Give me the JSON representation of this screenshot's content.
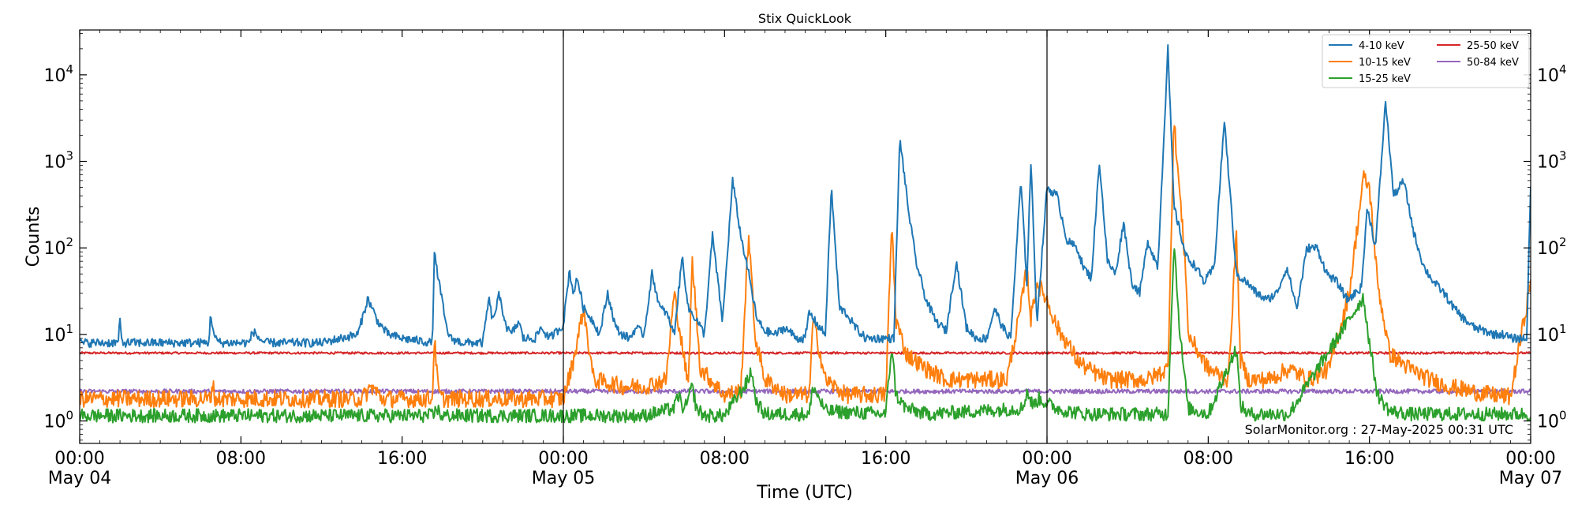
{
  "chart_data": {
    "type": "line",
    "title": "Stix QuickLook",
    "xlabel": "Time (UTC)",
    "ylabel": "Counts",
    "yscale": "log",
    "ylim": [
      0.55,
      33000
    ],
    "xlim": [
      0,
      72
    ],
    "x_unit": "hours since May 04 00:00 UTC",
    "grid": false,
    "legend": "top-right",
    "credit": "SolarMonitor.org : 27-May-2025 00:31 UTC",
    "day_lines": [
      24,
      48
    ],
    "x_ticks": [
      {
        "x": 0,
        "time": "00:00",
        "date": "May 04"
      },
      {
        "x": 8,
        "time": "08:00",
        "date": ""
      },
      {
        "x": 16,
        "time": "16:00",
        "date": ""
      },
      {
        "x": 24,
        "time": "00:00",
        "date": "May 05"
      },
      {
        "x": 32,
        "time": "08:00",
        "date": ""
      },
      {
        "x": 40,
        "time": "16:00",
        "date": ""
      },
      {
        "x": 48,
        "time": "00:00",
        "date": "May 06"
      },
      {
        "x": 56,
        "time": "08:00",
        "date": ""
      },
      {
        "x": 64,
        "time": "16:00",
        "date": ""
      },
      {
        "x": 72,
        "time": "00:00",
        "date": "May 07"
      }
    ],
    "y_ticks": [
      {
        "value": 1,
        "base": "10",
        "exp": "0"
      },
      {
        "value": 10,
        "base": "10",
        "exp": "1"
      },
      {
        "value": 100,
        "base": "10",
        "exp": "2"
      },
      {
        "value": 1000,
        "base": "10",
        "exp": "3"
      },
      {
        "value": 10000,
        "base": "10",
        "exp": "4"
      }
    ],
    "series": [
      {
        "name": "4-10 keV",
        "color": "#1f77b4",
        "noise": 0.05,
        "spiky": true,
        "x": [
          0,
          1.2,
          1.9,
          2.0,
          2.1,
          3,
          4,
          6.4,
          6.5,
          6.7,
          7,
          8.4,
          8.6,
          8.9,
          9.2,
          10,
          12,
          13.8,
          14.3,
          14.8,
          15.3,
          16,
          17.5,
          17.6,
          18.2,
          18.4,
          19,
          20,
          20.3,
          20.5,
          20.8,
          21.2,
          21.4,
          21.8,
          22,
          22.6,
          22.9,
          23.3,
          23.7,
          24,
          24.3,
          24.5,
          24.7,
          25,
          25.5,
          25.8,
          26.2,
          26.6,
          26.9,
          27.3,
          27.6,
          28,
          28.4,
          28.8,
          29.1,
          29.5,
          29.9,
          30.2,
          30.6,
          31,
          31.4,
          31.9,
          32.4,
          32.8,
          33.2,
          33.6,
          34,
          34.5,
          35,
          35.6,
          36,
          36.2,
          36.6,
          37,
          37.3,
          37.7,
          38,
          38.5,
          39,
          39.6,
          40,
          40.4,
          40.7,
          41.1,
          41.5,
          42,
          42.5,
          43,
          43.5,
          44,
          44.5,
          45,
          45.4,
          45.8,
          46.2,
          46.7,
          47,
          47.2,
          47.5,
          48,
          48.5,
          49,
          49.5,
          49.8,
          50.2,
          50.6,
          51,
          51.4,
          51.8,
          52.2,
          52.6,
          53,
          53.5,
          54,
          54.3,
          54.9,
          55.4,
          55.8,
          56.3,
          56.8,
          57.4,
          57.9,
          58.4,
          58.9,
          59.4,
          59.9,
          60.4,
          60.9,
          61.4,
          61.9,
          62.4,
          62.9,
          63.3,
          63.6,
          63.9,
          64.3,
          64.8,
          65.2,
          65.7,
          66.2,
          66.7,
          67.2,
          67.7,
          68.2,
          68.7,
          69.2,
          69.7,
          70.2,
          70.7,
          71,
          71.4,
          71.8,
          72
        ],
        "y": [
          8,
          8,
          8,
          14,
          8,
          8,
          8,
          8,
          17,
          9,
          8,
          8,
          11,
          9,
          8,
          8,
          8,
          10,
          26,
          14,
          10,
          9,
          8,
          85,
          12,
          9,
          8,
          8,
          26,
          14,
          28,
          12,
          10,
          14,
          9,
          9,
          12,
          9,
          11,
          13,
          55,
          30,
          45,
          20,
          14,
          10,
          30,
          12,
          10,
          9,
          12,
          10,
          50,
          20,
          18,
          10,
          80,
          20,
          15,
          10,
          140,
          14,
          600,
          140,
          50,
          15,
          11,
          10,
          12,
          9,
          9,
          18,
          13,
          10,
          500,
          20,
          18,
          12,
          9,
          9,
          9,
          9,
          1900,
          300,
          70,
          25,
          14,
          11,
          70,
          12,
          9,
          9,
          20,
          12,
          9,
          600,
          40,
          1000,
          14,
          500,
          400,
          120,
          100,
          60,
          45,
          1000,
          70,
          50,
          200,
          40,
          30,
          120,
          60,
          20000,
          300,
          80,
          60,
          40,
          60,
          3000,
          50,
          40,
          30,
          25,
          30,
          60,
          20,
          100,
          100,
          50,
          40,
          25,
          30,
          35,
          300,
          100,
          5000,
          400,
          600,
          150,
          60,
          40,
          30,
          20,
          15,
          12,
          11,
          10,
          10,
          9,
          9,
          9,
          500
        ]
      },
      {
        "name": "10-15 keV",
        "color": "#ff7f0e",
        "noise": 0.1,
        "spiky": true,
        "x": [
          0,
          6.5,
          6.6,
          6.7,
          8,
          11,
          14,
          14.5,
          15,
          17.5,
          17.6,
          17.8,
          18,
          20.5,
          22,
          24,
          24.5,
          25,
          25.5,
          27,
          28,
          29.1,
          29.5,
          30.2,
          30.4,
          30.8,
          32,
          32.8,
          33.2,
          33.5,
          34,
          34.5,
          35,
          36.2,
          36.4,
          37,
          38,
          40,
          40.3,
          40.5,
          41,
          42,
          43,
          44,
          45,
          46,
          46.7,
          47,
          47.2,
          47.5,
          48,
          48.5,
          49,
          49.5,
          50,
          51,
          52,
          53,
          54,
          54.3,
          54.9,
          55,
          56,
          57,
          57.4,
          57.6,
          58,
          59,
          60,
          61,
          62,
          63,
          63.7,
          64,
          64.4,
          65,
          66,
          67,
          68,
          69,
          70,
          71,
          72
        ],
        "y": [
          1.8,
          1.8,
          2.8,
          1.8,
          1.8,
          1.8,
          1.8,
          2.5,
          1.8,
          1.8,
          9,
          2.2,
          1.8,
          1.8,
          1.8,
          1.8,
          5,
          20,
          3,
          2.5,
          2.5,
          3,
          30,
          2.5,
          70,
          4,
          2,
          2.2,
          150,
          10,
          3,
          2.5,
          2,
          2,
          15,
          3,
          2,
          2,
          200,
          15,
          6,
          4,
          3,
          3,
          3,
          3,
          20,
          60,
          15,
          40,
          25,
          12,
          8,
          5,
          4,
          3,
          3,
          3,
          4,
          3000,
          50,
          10,
          4,
          3,
          150,
          5,
          3,
          3,
          4,
          3,
          4,
          30,
          650,
          500,
          40,
          6,
          4,
          3,
          2.5,
          2.2,
          2,
          1.9,
          40
        ]
      },
      {
        "name": "15-25 keV",
        "color": "#2ca02c",
        "noise": 0.08,
        "spiky": true,
        "x": [
          0,
          17.6,
          17.7,
          17.9,
          20,
          24,
          28,
          29.5,
          29.7,
          30,
          30.4,
          30.6,
          31,
          32,
          33.2,
          33.3,
          33.6,
          34,
          36.2,
          36.4,
          37,
          40,
          40.3,
          40.5,
          41,
          42,
          46.8,
          47,
          47.3,
          47.6,
          48,
          48.5,
          49,
          50,
          51,
          52,
          54,
          54.3,
          54.6,
          55,
          56,
          57.4,
          57.6,
          58,
          60,
          63.7,
          64,
          64.4,
          65,
          66,
          72
        ],
        "y": [
          1.15,
          1.15,
          1.5,
          1.15,
          1.15,
          1.15,
          1.15,
          1.4,
          2,
          1.3,
          2.5,
          1.4,
          1.15,
          1.15,
          3,
          4,
          1.6,
          1.2,
          1.2,
          2.5,
          1.3,
          1.2,
          7.5,
          2,
          1.4,
          1.2,
          1.4,
          2.2,
          1.5,
          1.8,
          1.6,
          1.4,
          1.3,
          1.2,
          1.2,
          1.2,
          1.2,
          120,
          10,
          1.4,
          1.2,
          7,
          1.5,
          1.2,
          1.2,
          27,
          8,
          2,
          1.3,
          1.2,
          1.2
        ]
      },
      {
        "name": "25-50 keV",
        "color": "#d62728",
        "noise": 0.012,
        "spiky": false,
        "x": [
          0,
          72
        ],
        "y": [
          6.1,
          6.1
        ]
      },
      {
        "name": "50-84 keV",
        "color": "#9467bd",
        "noise": 0.025,
        "spiky": false,
        "x": [
          0,
          72
        ],
        "y": [
          2.2,
          2.2
        ]
      }
    ]
  }
}
